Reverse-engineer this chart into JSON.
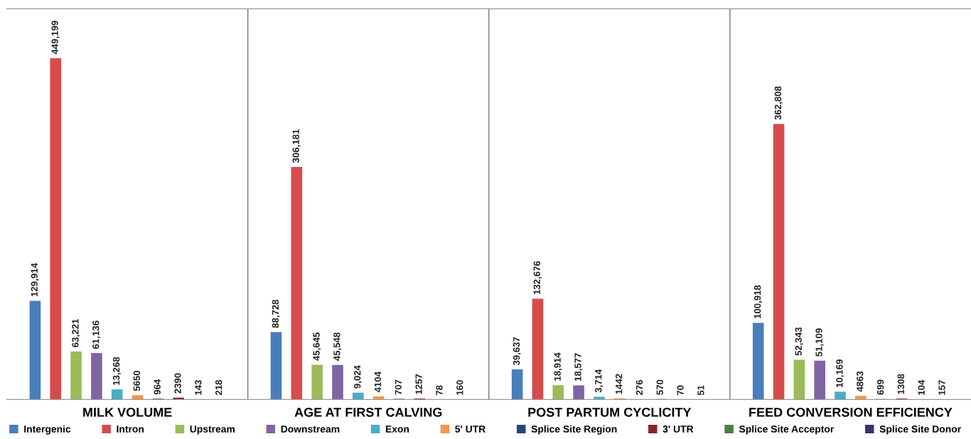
{
  "chart_data": {
    "type": "bar",
    "categories": [
      "MILK VOLUME",
      "AGE AT FIRST CALVING",
      "POST PARTUM CYCLICITY",
      "FEED CONVERSION EFFICIENCY"
    ],
    "legend": "bottom",
    "series": [
      {
        "name": "Intergenic",
        "color": "#4a7ebb",
        "values": [
          129914,
          88728,
          39637,
          100918
        ],
        "value_labels": [
          "129,914",
          "88,728",
          "39,637",
          "100,918"
        ]
      },
      {
        "name": "Intron",
        "color": "#d84b4b",
        "values": [
          449199,
          306181,
          132676,
          362808
        ],
        "value_labels": [
          "449,199",
          "306,181",
          "132,676",
          "362,808"
        ]
      },
      {
        "name": "Upstream",
        "color": "#9bbb59",
        "values": [
          63221,
          45645,
          18914,
          52343
        ],
        "value_labels": [
          "63,221",
          "45,645",
          "18,914",
          "52,343"
        ]
      },
      {
        "name": "Downstream",
        "color": "#8064a2",
        "values": [
          61136,
          45548,
          18577,
          51109
        ],
        "value_labels": [
          "61,136",
          "45,548",
          "18,577",
          "51,109"
        ]
      },
      {
        "name": "Exon",
        "color": "#4bacc6",
        "values": [
          13268,
          9024,
          3714,
          10169
        ],
        "value_labels": [
          "13,268",
          "9,024",
          "3,714",
          "10,169"
        ]
      },
      {
        "name": "5' UTR",
        "color": "#f79646",
        "values": [
          5650,
          4104,
          1442,
          4863
        ],
        "value_labels": [
          "5650",
          "4104",
          "1442",
          "4863"
        ]
      },
      {
        "name": "Splice Site Region",
        "color": "#1f497d",
        "values": [
          964,
          707,
          276,
          699
        ],
        "value_labels": [
          "964",
          "707",
          "276",
          "699"
        ]
      },
      {
        "name": "3' UTR",
        "color": "#8b2323",
        "values": [
          2390,
          1257,
          570,
          1308
        ],
        "value_labels": [
          "2390",
          "1257",
          "570",
          "1308"
        ]
      },
      {
        "name": "Splice Site Acceptor",
        "color": "#4f7f3f",
        "values": [
          143,
          78,
          70,
          104
        ],
        "value_labels": [
          "143",
          "78",
          "70",
          "104"
        ]
      },
      {
        "name": "Splice Site Donor",
        "color": "#3f2f6f",
        "values": [
          218,
          160,
          51,
          157
        ],
        "value_labels": [
          "218",
          "160",
          "51",
          "157"
        ]
      }
    ]
  }
}
